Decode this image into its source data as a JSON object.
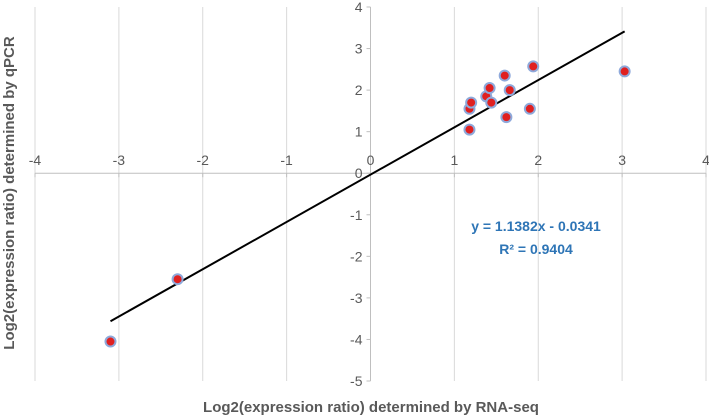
{
  "chart_data": {
    "type": "scatter",
    "title": "",
    "xlabel": "Log2(expression ratio) determined by RNA-seq",
    "ylabel": "Log2(expression ratio) determined by qPCR",
    "xlim": [
      -4,
      4
    ],
    "ylim": [
      -5,
      4
    ],
    "x_ticks": [
      "-4",
      "-3",
      "-2",
      "-1",
      "0",
      "1",
      "2",
      "3",
      "4"
    ],
    "y_ticks": [
      "4",
      "3",
      "2",
      "1",
      "0",
      "-1",
      "-2",
      "-3",
      "-4",
      "-5"
    ],
    "grid": "vertical",
    "points": [
      {
        "x": -3.1,
        "y": -4.05
      },
      {
        "x": -2.3,
        "y": -2.55
      },
      {
        "x": 1.18,
        "y": 1.05
      },
      {
        "x": 1.18,
        "y": 1.55
      },
      {
        "x": 1.2,
        "y": 1.7
      },
      {
        "x": 1.38,
        "y": 1.85
      },
      {
        "x": 1.42,
        "y": 2.05
      },
      {
        "x": 1.44,
        "y": 1.7
      },
      {
        "x": 1.6,
        "y": 2.35
      },
      {
        "x": 1.62,
        "y": 1.35
      },
      {
        "x": 1.66,
        "y": 2.0
      },
      {
        "x": 1.9,
        "y": 1.55
      },
      {
        "x": 1.94,
        "y": 2.57
      },
      {
        "x": 3.03,
        "y": 2.45
      }
    ],
    "trendline": {
      "slope": 1.1382,
      "intercept": -0.0341,
      "x_range": [
        -3.1,
        3.03
      ]
    },
    "annotations": [
      "y = 1.1382x - 0.0341",
      "R² = 0.9404"
    ],
    "colors": {
      "point_fill": "#E02020",
      "point_stroke": "#8EA9DB",
      "trendline": "#000000",
      "grid": "#D9D9D9",
      "axis": "#BFBFBF",
      "annotation": "#2E75B6"
    }
  }
}
